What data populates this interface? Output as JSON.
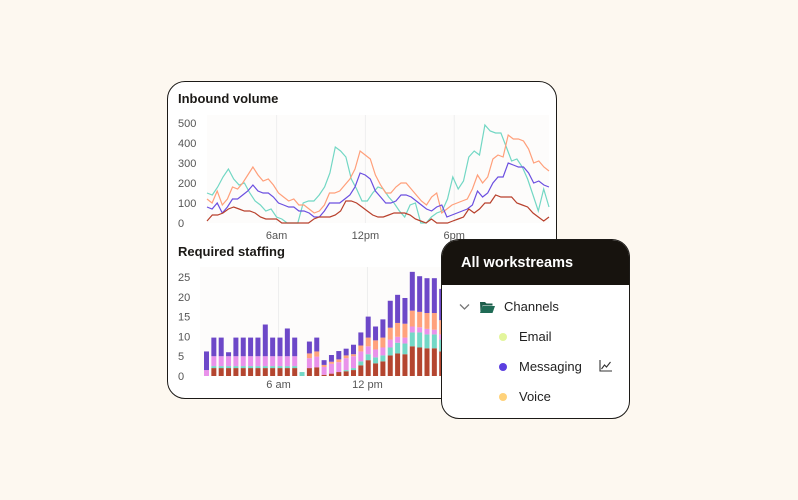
{
  "chart_data": [
    {
      "type": "line",
      "title": "Inbound volume",
      "ylim": [
        0,
        500
      ],
      "yticks": [
        "0",
        "100",
        "200",
        "300",
        "400",
        "500"
      ],
      "xticks": [
        {
          "label": "6am",
          "x": 6
        },
        {
          "label": "12pm",
          "x": 12
        },
        {
          "label": "6pm",
          "x": 18
        }
      ],
      "xlim": [
        1.3,
        24.4
      ],
      "grid": "vertical",
      "series": [
        {
          "color": "#72d7c4",
          "values": [
            150,
            140,
            180,
            230,
            270,
            220,
            190,
            200,
            150,
            110,
            90,
            60,
            70,
            30,
            20,
            0,
            0,
            0,
            100,
            110,
            110,
            140,
            180,
            250,
            380,
            360,
            330,
            220,
            170,
            110,
            110,
            150,
            180,
            170,
            130,
            100,
            60,
            30,
            90,
            100,
            0,
            0,
            30,
            50,
            60,
            120,
            230,
            170,
            210,
            330,
            360,
            340,
            490,
            460,
            450,
            450,
            380,
            310,
            320,
            280,
            220,
            140,
            60,
            170,
            80
          ]
        },
        {
          "color": "#ff9f7a",
          "values": [
            120,
            100,
            160,
            90,
            120,
            180,
            170,
            200,
            240,
            280,
            240,
            210,
            220,
            190,
            150,
            130,
            110,
            120,
            90,
            90,
            70,
            50,
            60,
            90,
            150,
            150,
            160,
            190,
            220,
            270,
            360,
            340,
            320,
            240,
            190,
            150,
            150,
            180,
            200,
            200,
            170,
            140,
            110,
            90,
            130,
            150,
            50,
            70,
            90,
            100,
            110,
            120,
            170,
            240,
            200,
            230,
            320,
            340,
            330,
            440,
            420,
            420,
            410,
            370,
            300,
            310,
            280,
            260
          ]
        },
        {
          "color": "#6b4fe0",
          "values": [
            80,
            70,
            100,
            50,
            80,
            120,
            120,
            140,
            160,
            190,
            160,
            150,
            150,
            130,
            100,
            90,
            80,
            80,
            60,
            60,
            50,
            30,
            30,
            60,
            100,
            100,
            100,
            120,
            140,
            180,
            250,
            240,
            220,
            160,
            130,
            100,
            100,
            110,
            140,
            140,
            130,
            110,
            90,
            70,
            60,
            80,
            90,
            30,
            40,
            50,
            60,
            70,
            90,
            160,
            130,
            150,
            200,
            230,
            230,
            300,
            290,
            280,
            280,
            250,
            200,
            210,
            190,
            180
          ]
        },
        {
          "color": "#b8402c",
          "values": [
            10,
            40,
            40,
            50,
            70,
            80,
            70,
            60,
            60,
            50,
            30,
            20,
            20,
            20,
            0,
            0,
            0,
            0,
            0,
            0,
            20,
            30,
            30,
            30,
            40,
            60,
            110,
            110,
            100,
            80,
            60,
            40,
            30,
            30,
            40,
            50,
            50,
            50,
            40,
            20,
            10,
            0,
            20,
            0,
            0,
            0,
            10,
            20,
            30,
            70,
            50,
            70,
            100,
            100,
            140,
            130,
            130,
            130,
            100,
            90,
            80,
            50,
            30,
            10,
            30
          ]
        }
      ]
    },
    {
      "type": "bar",
      "stacked": true,
      "title": "Required staffing",
      "ylim": [
        0,
        25
      ],
      "yticks": [
        "0",
        "5",
        "10",
        "15",
        "20",
        "25"
      ],
      "xticks": [
        {
          "label": "6 am",
          "index": 9.8
        },
        {
          "label": "12 pm",
          "index": 21.9
        }
      ],
      "grid": "vertical",
      "series": [
        {
          "color": "#b4452f",
          "values": [
            0,
            2,
            2,
            2,
            2,
            2,
            2,
            2,
            2,
            2,
            2,
            2,
            2,
            0,
            2,
            2.2,
            0.3,
            0.6,
            1,
            1.2,
            1.5,
            2.7,
            4,
            3.2,
            3.7,
            5.2,
            5.7,
            5.5,
            7.5,
            7.2,
            7,
            7,
            6.2,
            5,
            5
          ]
        },
        {
          "color": "#73d8c6",
          "values": [
            0,
            0.5,
            0.5,
            0.5,
            0.5,
            0.5,
            0.5,
            0.5,
            0.5,
            0.5,
            0.5,
            0.5,
            0.5,
            1,
            0,
            0,
            0,
            0,
            0,
            0.3,
            0.5,
            1,
            1.5,
            1.5,
            1.5,
            2,
            2.7,
            2.7,
            3.5,
            3.8,
            3.5,
            3.5,
            3,
            2.2,
            2
          ]
        },
        {
          "color": "#e991ea",
          "values": [
            1.5,
            2.5,
            2.5,
            2.5,
            2.5,
            2.5,
            2.5,
            2.5,
            2.5,
            2.5,
            2.5,
            2.5,
            2.5,
            0,
            2.5,
            2.7,
            2,
            2.5,
            2.5,
            3,
            3,
            2.5,
            2,
            2,
            2,
            2,
            1.5,
            1.5,
            1.5,
            1.3,
            1.4,
            1.2,
            1.3,
            1.5,
            1.5
          ]
        },
        {
          "color": "#ffa27c",
          "values": [
            0,
            0,
            0,
            0,
            0,
            0,
            0,
            0,
            0,
            0,
            0,
            0,
            0,
            0,
            1.2,
            1.3,
            0.5,
            0.5,
            0.7,
            0.7,
            0.5,
            1.5,
            2.2,
            2.3,
            2.5,
            3,
            3.5,
            3.5,
            4,
            3.9,
            4,
            4.2,
            3.6,
            3,
            3
          ]
        },
        {
          "color": "#6d48c8",
          "values": [
            4.7,
            4.7,
            4.7,
            1,
            4.7,
            4.7,
            4.7,
            4.7,
            8,
            4.7,
            4.7,
            7,
            4.7,
            0,
            3,
            3.5,
            1.2,
            1.7,
            2.1,
            1.7,
            2.4,
            3.3,
            5.3,
            3.5,
            4.6,
            6.8,
            7.1,
            6.5,
            9.8,
            9,
            8.8,
            8.8,
            7.9,
            6.8,
            6.5
          ]
        }
      ]
    }
  ],
  "popup": {
    "title": "All workstreams",
    "group": "Channels",
    "items": [
      {
        "label": "Email",
        "color": "#e3f59c"
      },
      {
        "label": "Messaging",
        "color": "#5b3fe0",
        "icon": "line-chart-icon"
      },
      {
        "label": "Voice",
        "color": "#ffd27a"
      }
    ]
  }
}
